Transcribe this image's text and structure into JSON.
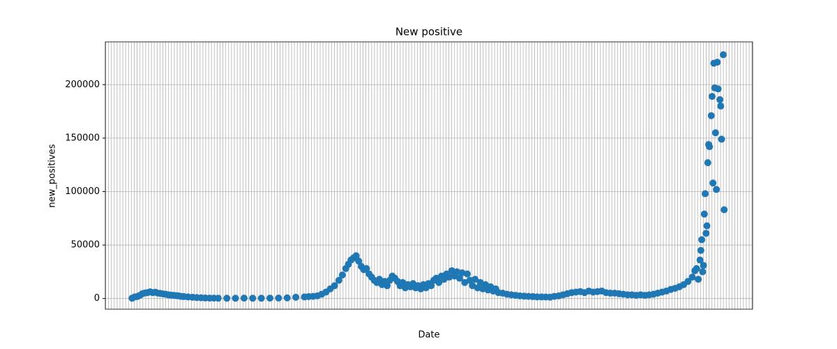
{
  "chart_data": {
    "type": "scatter",
    "title": "New positive",
    "x_label": "Date",
    "y_label": "new_positives",
    "color": "#1f77b4",
    "grid": true,
    "xlim": [
      -31,
      720
    ],
    "ylim": [
      -10000,
      240000
    ],
    "yticks": [
      0,
      50000,
      100000,
      150000,
      200000
    ],
    "x": [
      0,
      3,
      6,
      9,
      12,
      15,
      18,
      21,
      24,
      27,
      30,
      33,
      36,
      39,
      42,
      45,
      48,
      51,
      54,
      57,
      60,
      65,
      70,
      75,
      80,
      85,
      90,
      95,
      100,
      110,
      120,
      130,
      140,
      150,
      160,
      170,
      180,
      190,
      200,
      205,
      210,
      215,
      220,
      225,
      230,
      235,
      240,
      244,
      248,
      251,
      254,
      257,
      260,
      263,
      266,
      269,
      272,
      275,
      278,
      281,
      284,
      287,
      290,
      293,
      296,
      299,
      302,
      305,
      308,
      311,
      314,
      317,
      320,
      323,
      326,
      329,
      332,
      335,
      338,
      341,
      344,
      347,
      350,
      353,
      356,
      359,
      362,
      365,
      368,
      371,
      374,
      377,
      380,
      383,
      386,
      389,
      392,
      395,
      398,
      401,
      404,
      407,
      410,
      413,
      416,
      419,
      422,
      425,
      430,
      435,
      440,
      445,
      450,
      455,
      460,
      465,
      470,
      475,
      480,
      485,
      490,
      495,
      500,
      505,
      510,
      515,
      520,
      525,
      530,
      535,
      540,
      545,
      550,
      555,
      560,
      565,
      570,
      575,
      580,
      585,
      590,
      595,
      600,
      605,
      610,
      615,
      620,
      625,
      630,
      635,
      640,
      645,
      650,
      653,
      655,
      657,
      659,
      660,
      661,
      662,
      663,
      664,
      665,
      666,
      667,
      668,
      669,
      670,
      672,
      673,
      674,
      675,
      676,
      677,
      678,
      679,
      680,
      682,
      683,
      684,
      686,
      687
    ],
    "values": [
      300,
      1500,
      1800,
      3000,
      4500,
      5200,
      5500,
      6200,
      5500,
      5900,
      5000,
      4800,
      4300,
      4000,
      3500,
      3200,
      3000,
      2700,
      2500,
      2000,
      1800,
      1500,
      1200,
      900,
      700,
      500,
      400,
      350,
      300,
      250,
      250,
      350,
      300,
      300,
      400,
      450,
      600,
      1200,
      1500,
      1800,
      2000,
      2500,
      4000,
      6000,
      9000,
      12000,
      17000,
      22000,
      28000,
      32000,
      36000,
      38000,
      40000,
      35000,
      30000,
      27000,
      28000,
      23000,
      20000,
      17000,
      15000,
      18000,
      13000,
      16000,
      12000,
      17000,
      21000,
      19000,
      16000,
      12000,
      15000,
      10000,
      13000,
      11000,
      14000,
      10000,
      12000,
      9000,
      13000,
      10000,
      14000,
      12000,
      17000,
      19000,
      15000,
      21000,
      18000,
      23000,
      20000,
      26000,
      21000,
      25000,
      19000,
      24000,
      15000,
      23000,
      17000,
      12000,
      18000,
      10000,
      15000,
      9000,
      13000,
      8000,
      11000,
      7000,
      9000,
      5500,
      5000,
      4000,
      3500,
      3000,
      2500,
      2200,
      2000,
      1800,
      1500,
      1500,
      1400,
      1300,
      2000,
      2500,
      3500,
      4500,
      5500,
      6000,
      6500,
      5500,
      7000,
      6000,
      6500,
      7000,
      5500,
      5000,
      5000,
      4500,
      4000,
      3500,
      3500,
      3000,
      3500,
      3000,
      3500,
      4000,
      5000,
      6000,
      7000,
      8500,
      9500,
      11000,
      13000,
      16000,
      20000,
      26000,
      28000,
      18000,
      36000,
      45000,
      55000,
      25000,
      31000,
      79000,
      98000,
      61000,
      68000,
      127000,
      144000,
      142000,
      171000,
      189000,
      108000,
      220000,
      197000,
      155000,
      102000,
      221000,
      196000,
      186000,
      180000,
      149000,
      228000,
      83000
    ]
  }
}
